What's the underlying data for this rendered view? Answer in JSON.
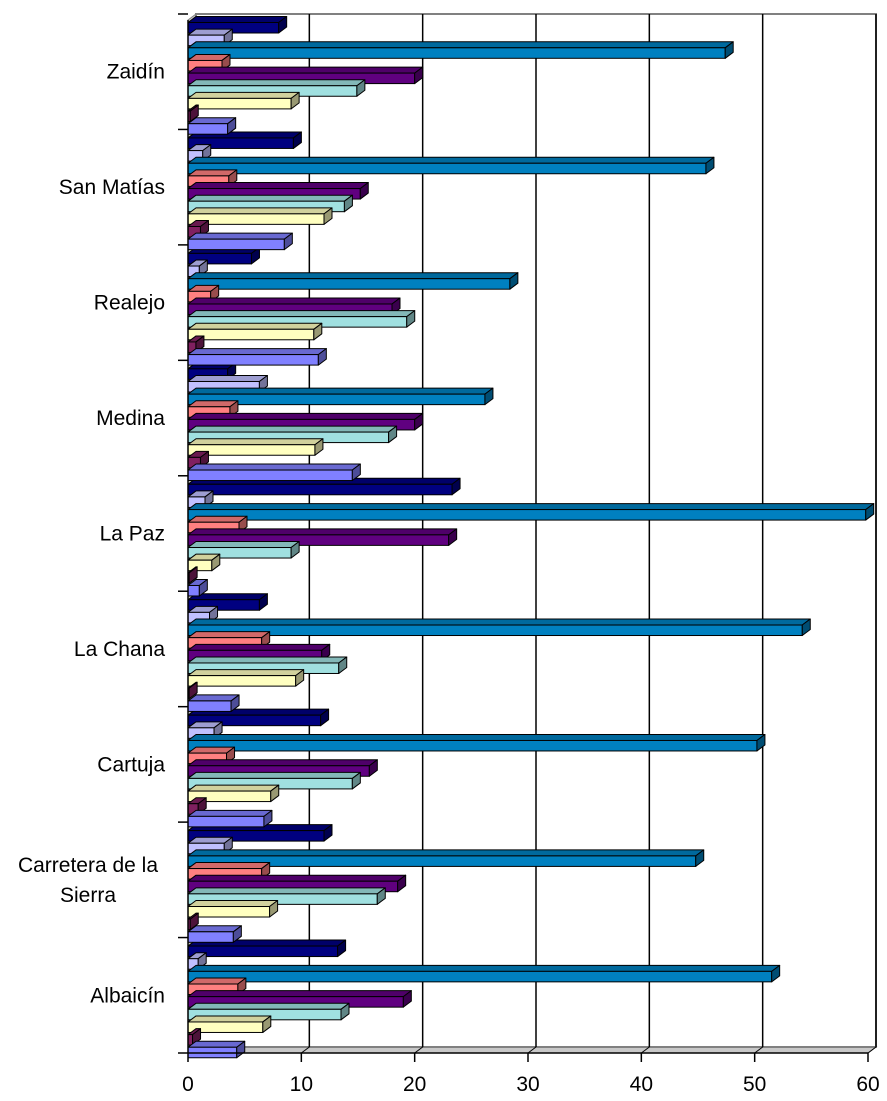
{
  "chart_data": {
    "type": "bar",
    "orientation": "horizontal",
    "style": "3d",
    "categories": [
      "Albaicín",
      "Carretera de la Sierra",
      "Cartuja",
      "La Chana",
      "La Paz",
      "Medina",
      "Realejo",
      "San Matías",
      "Zaidín"
    ],
    "series": [
      {
        "color": "#8080ff",
        "values": [
          4.3,
          4.0,
          6.7,
          3.8,
          1.0,
          14.5,
          11.5,
          8.5,
          3.5
        ]
      },
      {
        "color": "#802060",
        "values": [
          0.4,
          0.2,
          0.9,
          0.1,
          0.1,
          1.1,
          0.7,
          1.1,
          0.2
        ]
      },
      {
        "color": "#ffffc0",
        "values": [
          6.6,
          7.2,
          7.3,
          9.5,
          2.1,
          11.2,
          11.1,
          12.0,
          9.1
        ]
      },
      {
        "color": "#a0e0e0",
        "values": [
          13.5,
          16.7,
          14.5,
          13.3,
          9.1,
          17.7,
          19.3,
          13.8,
          14.9
        ]
      },
      {
        "color": "#600080",
        "values": [
          19.0,
          18.5,
          16.0,
          11.8,
          23.0,
          20.0,
          18.0,
          15.2,
          20.0
        ]
      },
      {
        "color": "#ff8080",
        "values": [
          4.4,
          6.5,
          3.4,
          6.5,
          4.5,
          3.7,
          2.0,
          3.6,
          3.0
        ]
      },
      {
        "color": "#0080c0",
        "values": [
          51.5,
          44.8,
          50.2,
          54.2,
          59.8,
          26.2,
          28.4,
          45.7,
          47.4
        ]
      },
      {
        "color": "#c0c0ff",
        "values": [
          0.9,
          3.2,
          2.3,
          1.9,
          1.5,
          6.3,
          1.0,
          1.3,
          3.2
        ]
      },
      {
        "color": "#000080",
        "values": [
          13.2,
          12.0,
          11.7,
          6.3,
          23.3,
          3.5,
          5.6,
          9.3,
          8.0
        ]
      }
    ],
    "xlim": [
      0,
      60
    ],
    "x_ticks": [
      "0",
      "10",
      "20",
      "30",
      "40",
      "50",
      "60"
    ],
    "grid": "vertical major gridlines",
    "legend": "none",
    "title": "",
    "xlabel": "",
    "ylabel": ""
  }
}
